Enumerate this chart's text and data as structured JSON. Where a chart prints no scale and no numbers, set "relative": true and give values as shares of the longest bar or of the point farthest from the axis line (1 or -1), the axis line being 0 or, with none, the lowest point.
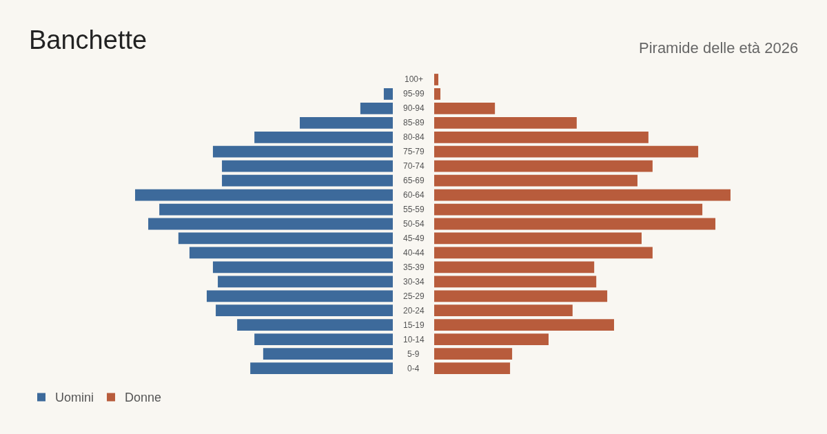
{
  "chart_data": [
    {
      "type": "bar",
      "orientation": "horizontal",
      "relative": true,
      "title": "Banchette",
      "legend": "bottom left",
      "grid": false,
      "tick_labels": "y",
      "categories": [
        "100+",
        "95-99",
        "90-94",
        "85-89",
        "80-84",
        "75-79",
        "70-74",
        "65-69",
        "60-64",
        "55-59",
        "50-54",
        "45-49",
        "40-44",
        "35-39",
        "30-34",
        "25-29",
        "20-24",
        "15-19",
        "10-14",
        "5-9",
        "0-4"
      ],
      "series": [
        {
          "name": "Uomini",
          "color": "#3d6a9b",
          "values": [
            0,
            -0.035,
            -0.126,
            -0.361,
            -0.537,
            -0.698,
            -0.663,
            -0.663,
            -1,
            -0.906,
            -0.949,
            -0.832,
            -0.789,
            -0.698,
            -0.679,
            -0.722,
            -0.687,
            -0.604,
            -0.537,
            -0.503,
            -0.553
          ]
        }
      ]
    },
    {
      "type": "bar",
      "orientation": "horizontal",
      "relative": true,
      "subtitle": "Piramide delle età 2026",
      "legend": "bottom left",
      "grid": false,
      "tick_labels": false,
      "categories": [
        "100+",
        "95-99",
        "90-94",
        "85-89",
        "80-84",
        "75-79",
        "70-74",
        "65-69",
        "60-64",
        "55-59",
        "50-54",
        "45-49",
        "40-44",
        "35-39",
        "30-34",
        "25-29",
        "20-24",
        "15-19",
        "10-14",
        "5-9",
        "0-4"
      ],
      "series": [
        {
          "name": "Donne",
          "color": "#b85c3c",
          "values": [
            0.014,
            0.021,
            0.205,
            0.481,
            0.723,
            0.891,
            0.737,
            0.686,
            1,
            0.905,
            0.949,
            0.7,
            0.737,
            0.54,
            0.547,
            0.584,
            0.467,
            0.607,
            0.386,
            0.263,
            0.256
          ]
        }
      ]
    }
  ]
}
